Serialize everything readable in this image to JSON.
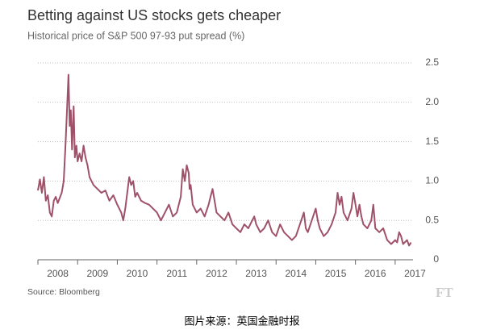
{
  "chart_data": {
    "type": "line",
    "title": "Betting against US stocks gets cheaper",
    "subtitle": "Historical price of S&P 500 97-93 put spread (%)",
    "source": "Source: Bloomberg",
    "logo": "FT",
    "caption": "图片来源：英国金融时报",
    "color": "#a0516a",
    "grid": true,
    "xlim": [
      2008,
      2017.45
    ],
    "xticks": [
      2008,
      2009,
      2010,
      2011,
      2012,
      2013,
      2014,
      2015,
      2016,
      2017
    ],
    "ylim": [
      0,
      2.5
    ],
    "yticks": [
      0,
      0.5,
      {
        "value": 1,
        "label": "1.0"
      },
      1.5,
      {
        "value": 2,
        "label": "2.0"
      },
      2.5
    ],
    "x": [
      2008.0,
      2008.05,
      2008.1,
      2008.15,
      2008.2,
      2008.25,
      2008.3,
      2008.35,
      2008.4,
      2008.45,
      2008.5,
      2008.6,
      2008.65,
      2008.7,
      2008.77,
      2008.8,
      2008.83,
      2008.86,
      2008.9,
      2008.93,
      2008.97,
      2009.0,
      2009.05,
      2009.1,
      2009.15,
      2009.2,
      2009.25,
      2009.3,
      2009.4,
      2009.5,
      2009.6,
      2009.7,
      2009.8,
      2009.9,
      2010.0,
      2010.1,
      2010.15,
      2010.2,
      2010.3,
      2010.35,
      2010.4,
      2010.45,
      2010.5,
      2010.6,
      2010.7,
      2010.8,
      2010.9,
      2011.0,
      2011.1,
      2011.2,
      2011.3,
      2011.4,
      2011.5,
      2011.6,
      2011.65,
      2011.7,
      2011.75,
      2011.8,
      2011.82,
      2011.85,
      2011.9,
      2012.0,
      2012.1,
      2012.2,
      2012.3,
      2012.35,
      2012.4,
      2012.45,
      2012.5,
      2012.6,
      2012.7,
      2012.8,
      2012.9,
      2013.0,
      2013.1,
      2013.2,
      2013.3,
      2013.4,
      2013.45,
      2013.5,
      2013.6,
      2013.7,
      2013.8,
      2013.9,
      2014.0,
      2014.1,
      2014.2,
      2014.3,
      2014.4,
      2014.5,
      2014.6,
      2014.7,
      2014.75,
      2014.8,
      2014.9,
      2015.0,
      2015.05,
      2015.1,
      2015.2,
      2015.3,
      2015.4,
      2015.5,
      2015.55,
      2015.6,
      2015.65,
      2015.7,
      2015.8,
      2015.9,
      2015.95,
      2016.0,
      2016.05,
      2016.1,
      2016.15,
      2016.2,
      2016.3,
      2016.4,
      2016.45,
      2016.5,
      2016.6,
      2016.7,
      2016.8,
      2016.9,
      2017.0,
      2017.05,
      2017.1,
      2017.15,
      2017.2,
      2017.3,
      2017.35,
      2017.4
    ],
    "values": [
      0.88,
      1.02,
      0.85,
      1.05,
      0.75,
      0.82,
      0.6,
      0.55,
      0.75,
      0.8,
      0.72,
      0.85,
      1.0,
      1.5,
      2.35,
      1.7,
      1.9,
      1.4,
      1.95,
      1.3,
      1.45,
      1.25,
      1.35,
      1.25,
      1.45,
      1.3,
      1.2,
      1.05,
      0.95,
      0.9,
      0.85,
      0.88,
      0.75,
      0.82,
      0.7,
      0.6,
      0.5,
      0.65,
      1.05,
      0.95,
      1.0,
      0.8,
      0.85,
      0.75,
      0.72,
      0.7,
      0.65,
      0.6,
      0.5,
      0.6,
      0.7,
      0.55,
      0.6,
      0.8,
      1.15,
      1.0,
      1.2,
      1.1,
      0.9,
      0.95,
      0.7,
      0.6,
      0.65,
      0.55,
      0.7,
      0.8,
      0.9,
      0.75,
      0.6,
      0.55,
      0.5,
      0.6,
      0.45,
      0.4,
      0.35,
      0.45,
      0.4,
      0.5,
      0.55,
      0.45,
      0.35,
      0.4,
      0.5,
      0.35,
      0.3,
      0.45,
      0.35,
      0.3,
      0.25,
      0.3,
      0.45,
      0.6,
      0.4,
      0.35,
      0.5,
      0.65,
      0.5,
      0.4,
      0.3,
      0.35,
      0.45,
      0.6,
      0.85,
      0.7,
      0.8,
      0.6,
      0.5,
      0.65,
      0.85,
      0.7,
      0.55,
      0.7,
      0.55,
      0.45,
      0.4,
      0.5,
      0.7,
      0.4,
      0.35,
      0.4,
      0.25,
      0.2,
      0.25,
      0.22,
      0.35,
      0.3,
      0.2,
      0.25,
      0.18,
      0.22
    ]
  }
}
